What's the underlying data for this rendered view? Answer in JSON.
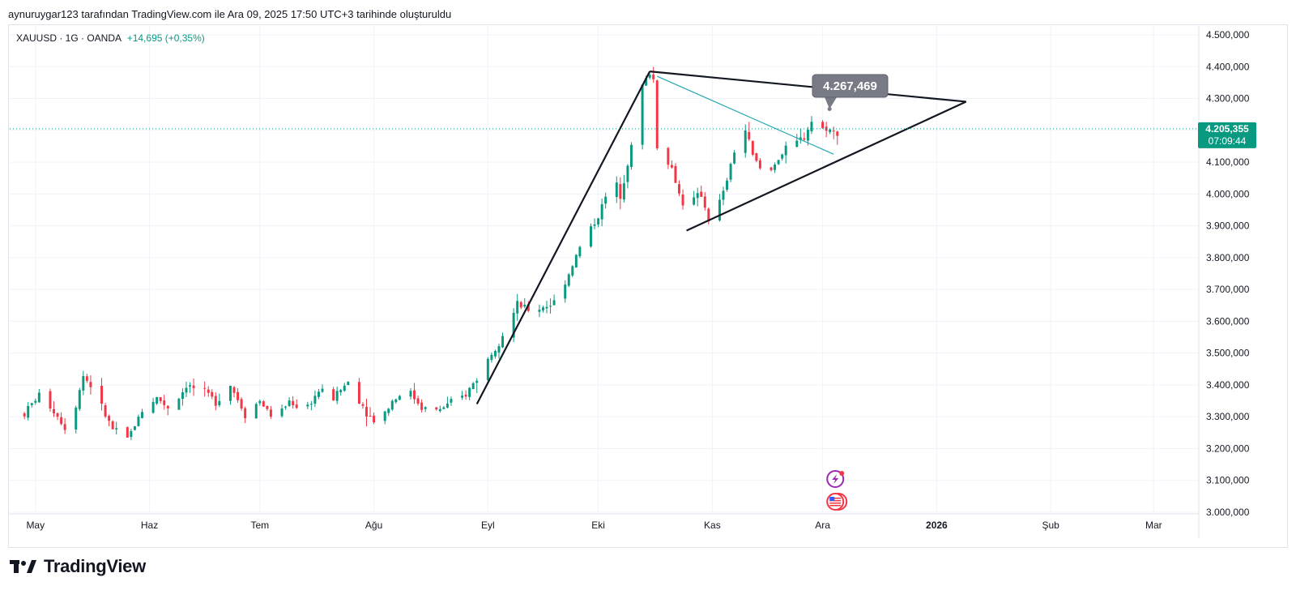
{
  "caption": "aynuruygar123 tarafından TradingView.com ile Ara 09, 2025 17:50 UTC+3 tarihinde oluşturuldu",
  "symbol": {
    "label": "XAUUSD · 1G · OANDA",
    "change": "+14,695 (+0,35%)"
  },
  "footer": {
    "brand": "TradingView"
  },
  "colors": {
    "up": "#089981",
    "down": "#f23645",
    "trend": "#131722",
    "teal": "#22a6b3",
    "price_label_bg": "#089981",
    "callout_bg": "#787b86"
  },
  "chart_data": {
    "type": "candlestick",
    "title": "XAUUSD · 1G · OANDA",
    "ylim": [
      3000,
      4550
    ],
    "y_ticks": [
      3000,
      3100,
      3200,
      3300,
      3400,
      3500,
      3600,
      3700,
      3800,
      3900,
      4000,
      4100,
      4200,
      4300,
      4400,
      4500
    ],
    "y_tick_labels": [
      "3.000,000",
      "3.100,000",
      "3.200,000",
      "3.300,000",
      "3.400,000",
      "3.500,000",
      "3.600,000",
      "3.700,000",
      "3.800,000",
      "3.900,000",
      "4.000,000",
      "4.100,000",
      "4.200,000",
      "4.300,000",
      "4.400,000",
      "4.500,000"
    ],
    "x_month_labels": [
      {
        "label": "May",
        "day": 3
      },
      {
        "label": "Haz",
        "day": 34
      },
      {
        "label": "Tem",
        "day": 64
      },
      {
        "label": "Ağu",
        "day": 95
      },
      {
        "label": "Eyl",
        "day": 126
      },
      {
        "label": "Eki",
        "day": 156
      },
      {
        "label": "Kas",
        "day": 187
      },
      {
        "label": "Ara",
        "day": 217
      },
      {
        "label": "2026",
        "day": 248
      },
      {
        "label": "Şub",
        "day": 279
      },
      {
        "label": "Mar",
        "day": 307
      }
    ],
    "x_day_range": [
      -4,
      336
    ],
    "close_path": [
      [
        0,
        3310
      ],
      [
        4,
        3370
      ],
      [
        8,
        3320
      ],
      [
        12,
        3250
      ],
      [
        16,
        3430
      ],
      [
        18,
        3400
      ],
      [
        20,
        3350
      ],
      [
        24,
        3260
      ],
      [
        26,
        3240
      ],
      [
        28,
        3230
      ],
      [
        32,
        3320
      ],
      [
        36,
        3360
      ],
      [
        40,
        3320
      ],
      [
        44,
        3400
      ],
      [
        48,
        3380
      ],
      [
        52,
        3350
      ],
      [
        56,
        3400
      ],
      [
        60,
        3310
      ],
      [
        64,
        3350
      ],
      [
        68,
        3290
      ],
      [
        72,
        3350
      ],
      [
        76,
        3320
      ],
      [
        80,
        3380
      ],
      [
        84,
        3360
      ],
      [
        88,
        3410
      ],
      [
        90,
        3370
      ],
      [
        94,
        3300
      ],
      [
        96,
        3280
      ],
      [
        100,
        3350
      ],
      [
        104,
        3390
      ],
      [
        108,
        3330
      ],
      [
        112,
        3320
      ],
      [
        116,
        3340
      ],
      [
        120,
        3370
      ],
      [
        124,
        3440
      ],
      [
        128,
        3520
      ],
      [
        132,
        3600
      ],
      [
        134,
        3650
      ],
      [
        138,
        3630
      ],
      [
        142,
        3650
      ],
      [
        144,
        3660
      ],
      [
        148,
        3750
      ],
      [
        152,
        3860
      ],
      [
        156,
        3930
      ],
      [
        160,
        4050
      ],
      [
        162,
        4000
      ],
      [
        164,
        4100
      ],
      [
        166,
        4200
      ],
      [
        168,
        4340
      ],
      [
        170,
        4380
      ],
      [
        171,
        4360
      ],
      [
        172,
        4150
      ],
      [
        174,
        4120
      ],
      [
        176,
        4080
      ],
      [
        178,
        4000
      ],
      [
        180,
        3950
      ],
      [
        182,
        3980
      ],
      [
        184,
        4000
      ],
      [
        186,
        3920
      ],
      [
        188,
        3950
      ],
      [
        190,
        4000
      ],
      [
        194,
        4180
      ],
      [
        196,
        4200
      ],
      [
        198,
        4120
      ],
      [
        200,
        4080
      ],
      [
        202,
        4050
      ],
      [
        204,
        4100
      ],
      [
        208,
        4150
      ],
      [
        210,
        4160
      ],
      [
        212,
        4180
      ],
      [
        214,
        4230
      ],
      [
        216,
        4200
      ],
      [
        218,
        4210
      ],
      [
        220,
        4190
      ],
      [
        222,
        4205
      ]
    ],
    "last_candle_day": 222,
    "last_price_label": "4.205,355",
    "countdown": "07:09:44",
    "callout_label": "4.267,469",
    "trendlines": [
      {
        "from": [
          123,
          3340
        ],
        "to": [
          170,
          4385
        ],
        "style": "black"
      },
      {
        "from": [
          170,
          4385
        ],
        "to": [
          256,
          4290
        ],
        "style": "black"
      },
      {
        "from": [
          180,
          3885
        ],
        "to": [
          256,
          4290
        ],
        "style": "black"
      },
      {
        "from": [
          172,
          4370
        ],
        "to": [
          220,
          4125
        ],
        "style": "teal"
      }
    ],
    "callout_day": 218,
    "callout_price": 4267,
    "event_icons": [
      {
        "name": "lightning-event-icon",
        "day": 220,
        "price": 3100
      },
      {
        "name": "us-flag-event-icon",
        "day": 220,
        "price": 3025
      }
    ]
  }
}
